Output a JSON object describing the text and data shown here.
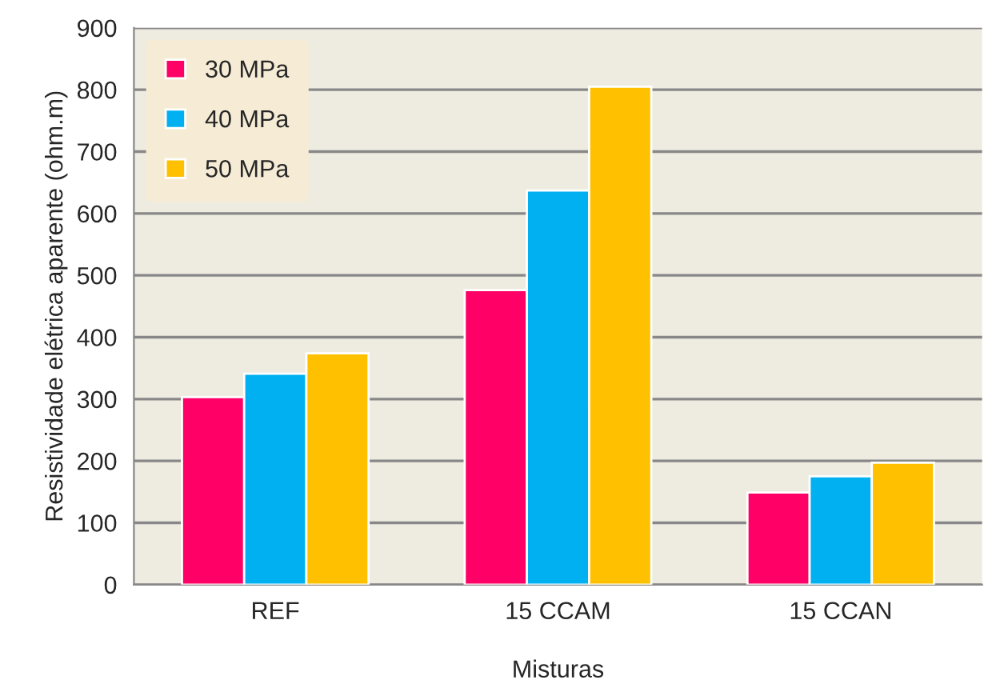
{
  "chart_data": {
    "type": "bar",
    "xlabel": "Misturas",
    "ylabel": "Resistividade elétrica aparente (ohm.m)",
    "categories": [
      "REF",
      "15 CCAM",
      "15 CCAN"
    ],
    "series": [
      {
        "name": "30 MPa",
        "color": "#ff0066",
        "values": [
          303,
          476,
          149
        ]
      },
      {
        "name": "40 MPa",
        "color": "#00b0f0",
        "values": [
          341,
          637,
          175
        ]
      },
      {
        "name": "50 MPa",
        "color": "#ffc000",
        "values": [
          374,
          805,
          197
        ]
      }
    ],
    "ylim": [
      0,
      900
    ],
    "yticks": [
      0,
      100,
      200,
      300,
      400,
      500,
      600,
      700,
      800,
      900
    ],
    "grid": "y",
    "legend": "top left"
  }
}
